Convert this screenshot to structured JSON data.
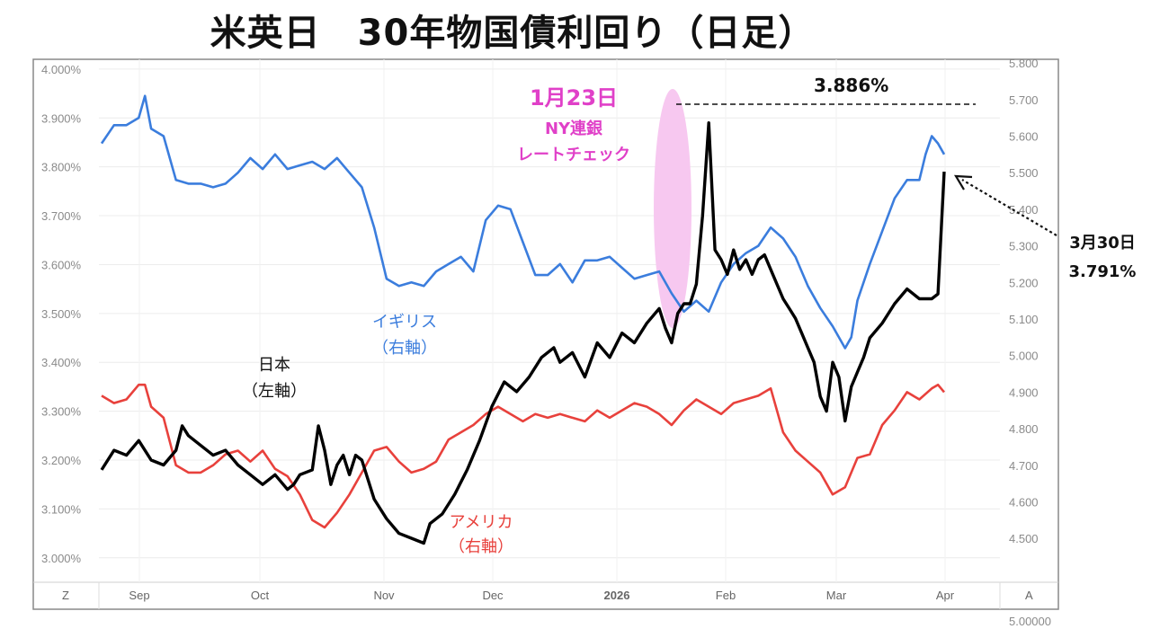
{
  "title": "米英日　30年物国債利回り（日足）",
  "chart_data": {
    "type": "line",
    "x_axis": {
      "labels": [
        "Sep",
        "Oct",
        "Nov",
        "Dec",
        "2026",
        "Feb",
        "Mar",
        "Apr"
      ],
      "left_corner": "Z",
      "right_corner": "A"
    },
    "y_left": {
      "ticks": [
        "4.000%",
        "3.900%",
        "3.800%",
        "3.700%",
        "3.600%",
        "3.500%",
        "3.400%",
        "3.300%",
        "3.200%",
        "3.100%",
        "3.000%"
      ],
      "range": [
        2.95,
        4.02
      ]
    },
    "y_right": {
      "ticks": [
        "5.800",
        "5.700",
        "5.600",
        "5.500",
        "5.400",
        "5.300",
        "5.200",
        "5.100",
        "5.000",
        "4.900",
        "4.800",
        "4.700",
        "4.600",
        "4.500"
      ],
      "range": [
        4.38,
        5.81
      ],
      "bottom_clipped": "5.00000"
    },
    "series": [
      {
        "name": "日本（左軸）",
        "axis": "left",
        "color": "#000000",
        "points": [
          [
            0,
            3.18
          ],
          [
            2,
            3.22
          ],
          [
            4,
            3.21
          ],
          [
            6,
            3.24
          ],
          [
            8,
            3.2
          ],
          [
            10,
            3.19
          ],
          [
            12,
            3.22
          ],
          [
            13,
            3.27
          ],
          [
            14,
            3.25
          ],
          [
            16,
            3.23
          ],
          [
            18,
            3.21
          ],
          [
            20,
            3.22
          ],
          [
            22,
            3.19
          ],
          [
            24,
            3.17
          ],
          [
            26,
            3.15
          ],
          [
            28,
            3.17
          ],
          [
            30,
            3.14
          ],
          [
            31,
            3.15
          ],
          [
            32,
            3.17
          ],
          [
            34,
            3.18
          ],
          [
            35,
            3.27
          ],
          [
            36,
            3.22
          ],
          [
            37,
            3.15
          ],
          [
            38,
            3.19
          ],
          [
            39,
            3.21
          ],
          [
            40,
            3.17
          ],
          [
            41,
            3.21
          ],
          [
            42,
            3.2
          ],
          [
            44,
            3.12
          ],
          [
            46,
            3.08
          ],
          [
            48,
            3.05
          ],
          [
            50,
            3.04
          ],
          [
            52,
            3.03
          ],
          [
            53,
            3.07
          ],
          [
            55,
            3.09
          ],
          [
            57,
            3.13
          ],
          [
            59,
            3.18
          ],
          [
            61,
            3.24
          ],
          [
            63,
            3.31
          ],
          [
            65,
            3.36
          ],
          [
            67,
            3.34
          ],
          [
            69,
            3.37
          ],
          [
            71,
            3.41
          ],
          [
            73,
            3.43
          ],
          [
            74,
            3.4
          ],
          [
            76,
            3.42
          ],
          [
            78,
            3.37
          ],
          [
            80,
            3.44
          ],
          [
            82,
            3.41
          ],
          [
            84,
            3.46
          ],
          [
            86,
            3.44
          ],
          [
            88,
            3.48
          ],
          [
            90,
            3.51
          ],
          [
            91,
            3.47
          ],
          [
            92,
            3.44
          ],
          [
            93,
            3.5
          ],
          [
            94,
            3.52
          ],
          [
            95,
            3.52
          ],
          [
            96,
            3.56
          ],
          [
            97,
            3.7
          ],
          [
            98,
            3.89
          ],
          [
            99,
            3.63
          ],
          [
            100,
            3.61
          ],
          [
            101,
            3.58
          ],
          [
            102,
            3.63
          ],
          [
            103,
            3.59
          ],
          [
            104,
            3.61
          ],
          [
            105,
            3.58
          ],
          [
            106,
            3.61
          ],
          [
            107,
            3.62
          ],
          [
            108,
            3.59
          ],
          [
            110,
            3.53
          ],
          [
            111,
            3.51
          ],
          [
            112,
            3.49
          ],
          [
            113,
            3.46
          ],
          [
            114,
            3.43
          ],
          [
            115,
            3.4
          ],
          [
            116,
            3.33
          ],
          [
            117,
            3.3
          ],
          [
            118,
            3.4
          ],
          [
            119,
            3.37
          ],
          [
            120,
            3.28
          ],
          [
            121,
            3.35
          ],
          [
            122,
            3.38
          ],
          [
            123,
            3.41
          ],
          [
            124,
            3.45
          ],
          [
            126,
            3.48
          ],
          [
            128,
            3.52
          ],
          [
            130,
            3.55
          ],
          [
            132,
            3.53
          ],
          [
            134,
            3.53
          ],
          [
            135,
            3.54
          ],
          [
            136,
            3.79
          ]
        ]
      },
      {
        "name": "イギリス（右軸）",
        "axis": "right",
        "color": "#3b7ddd",
        "points": [
          [
            0,
            5.58
          ],
          [
            2,
            5.63
          ],
          [
            4,
            5.63
          ],
          [
            6,
            5.65
          ],
          [
            7,
            5.71
          ],
          [
            8,
            5.62
          ],
          [
            10,
            5.6
          ],
          [
            12,
            5.48
          ],
          [
            14,
            5.47
          ],
          [
            16,
            5.47
          ],
          [
            18,
            5.46
          ],
          [
            20,
            5.47
          ],
          [
            22,
            5.5
          ],
          [
            24,
            5.54
          ],
          [
            26,
            5.51
          ],
          [
            28,
            5.55
          ],
          [
            30,
            5.51
          ],
          [
            32,
            5.52
          ],
          [
            34,
            5.53
          ],
          [
            36,
            5.51
          ],
          [
            38,
            5.54
          ],
          [
            40,
            5.5
          ],
          [
            42,
            5.46
          ],
          [
            44,
            5.35
          ],
          [
            46,
            5.21
          ],
          [
            48,
            5.19
          ],
          [
            50,
            5.2
          ],
          [
            52,
            5.19
          ],
          [
            54,
            5.23
          ],
          [
            56,
            5.25
          ],
          [
            58,
            5.27
          ],
          [
            60,
            5.23
          ],
          [
            62,
            5.37
          ],
          [
            64,
            5.41
          ],
          [
            66,
            5.4
          ],
          [
            68,
            5.31
          ],
          [
            70,
            5.22
          ],
          [
            72,
            5.22
          ],
          [
            74,
            5.25
          ],
          [
            76,
            5.2
          ],
          [
            78,
            5.26
          ],
          [
            80,
            5.26
          ],
          [
            82,
            5.27
          ],
          [
            84,
            5.24
          ],
          [
            86,
            5.21
          ],
          [
            88,
            5.22
          ],
          [
            90,
            5.23
          ],
          [
            92,
            5.17
          ],
          [
            94,
            5.12
          ],
          [
            96,
            5.15
          ],
          [
            98,
            5.12
          ],
          [
            100,
            5.2
          ],
          [
            102,
            5.25
          ],
          [
            104,
            5.28
          ],
          [
            106,
            5.3
          ],
          [
            108,
            5.35
          ],
          [
            110,
            5.32
          ],
          [
            112,
            5.27
          ],
          [
            114,
            5.19
          ],
          [
            116,
            5.13
          ],
          [
            118,
            5.08
          ],
          [
            120,
            5.02
          ],
          [
            121,
            5.05
          ],
          [
            122,
            5.15
          ],
          [
            124,
            5.25
          ],
          [
            126,
            5.34
          ],
          [
            128,
            5.43
          ],
          [
            130,
            5.48
          ],
          [
            132,
            5.48
          ],
          [
            133,
            5.55
          ],
          [
            134,
            5.6
          ],
          [
            135,
            5.58
          ],
          [
            136,
            5.55
          ]
        ]
      },
      {
        "name": "アメリカ（右軸）",
        "axis": "right",
        "color": "#e8413c",
        "points": [
          [
            0,
            4.89
          ],
          [
            2,
            4.87
          ],
          [
            4,
            4.88
          ],
          [
            6,
            4.92
          ],
          [
            7,
            4.92
          ],
          [
            8,
            4.86
          ],
          [
            10,
            4.83
          ],
          [
            12,
            4.7
          ],
          [
            14,
            4.68
          ],
          [
            16,
            4.68
          ],
          [
            18,
            4.7
          ],
          [
            20,
            4.73
          ],
          [
            22,
            4.74
          ],
          [
            24,
            4.71
          ],
          [
            26,
            4.74
          ],
          [
            28,
            4.69
          ],
          [
            30,
            4.67
          ],
          [
            32,
            4.62
          ],
          [
            34,
            4.55
          ],
          [
            36,
            4.53
          ],
          [
            38,
            4.57
          ],
          [
            40,
            4.62
          ],
          [
            42,
            4.68
          ],
          [
            44,
            4.74
          ],
          [
            46,
            4.75
          ],
          [
            48,
            4.71
          ],
          [
            50,
            4.68
          ],
          [
            52,
            4.69
          ],
          [
            54,
            4.71
          ],
          [
            56,
            4.77
          ],
          [
            58,
            4.79
          ],
          [
            60,
            4.81
          ],
          [
            62,
            4.84
          ],
          [
            64,
            4.86
          ],
          [
            66,
            4.84
          ],
          [
            68,
            4.82
          ],
          [
            70,
            4.84
          ],
          [
            72,
            4.83
          ],
          [
            74,
            4.84
          ],
          [
            76,
            4.83
          ],
          [
            78,
            4.82
          ],
          [
            80,
            4.85
          ],
          [
            82,
            4.83
          ],
          [
            84,
            4.85
          ],
          [
            86,
            4.87
          ],
          [
            88,
            4.86
          ],
          [
            90,
            4.84
          ],
          [
            92,
            4.81
          ],
          [
            94,
            4.85
          ],
          [
            96,
            4.88
          ],
          [
            98,
            4.86
          ],
          [
            100,
            4.84
          ],
          [
            102,
            4.87
          ],
          [
            104,
            4.88
          ],
          [
            106,
            4.89
          ],
          [
            108,
            4.91
          ],
          [
            110,
            4.79
          ],
          [
            112,
            4.74
          ],
          [
            114,
            4.71
          ],
          [
            116,
            4.68
          ],
          [
            118,
            4.62
          ],
          [
            120,
            4.64
          ],
          [
            122,
            4.72
          ],
          [
            124,
            4.73
          ],
          [
            126,
            4.81
          ],
          [
            128,
            4.85
          ],
          [
            130,
            4.9
          ],
          [
            132,
            4.88
          ],
          [
            134,
            4.91
          ],
          [
            135,
            4.92
          ],
          [
            136,
            4.9
          ]
        ]
      }
    ],
    "annotations": {
      "event_date": "1月23日",
      "event_line1": "NY連銀",
      "event_line2": "レートチェック",
      "peak_value": "3.886%",
      "last_date": "3月30日",
      "last_value": "3.791%"
    },
    "series_labels": {
      "japan_1": "日本",
      "japan_2": "（左軸）",
      "uk_1": "イギリス",
      "uk_2": "（右軸）",
      "us_1": "アメリカ",
      "us_2": "（右軸）"
    },
    "colors": {
      "event_highlight": "#f7c8f0",
      "event_text": "#e040c8",
      "japan": "#000000",
      "uk": "#3b7ddd",
      "us": "#e8413c"
    }
  }
}
